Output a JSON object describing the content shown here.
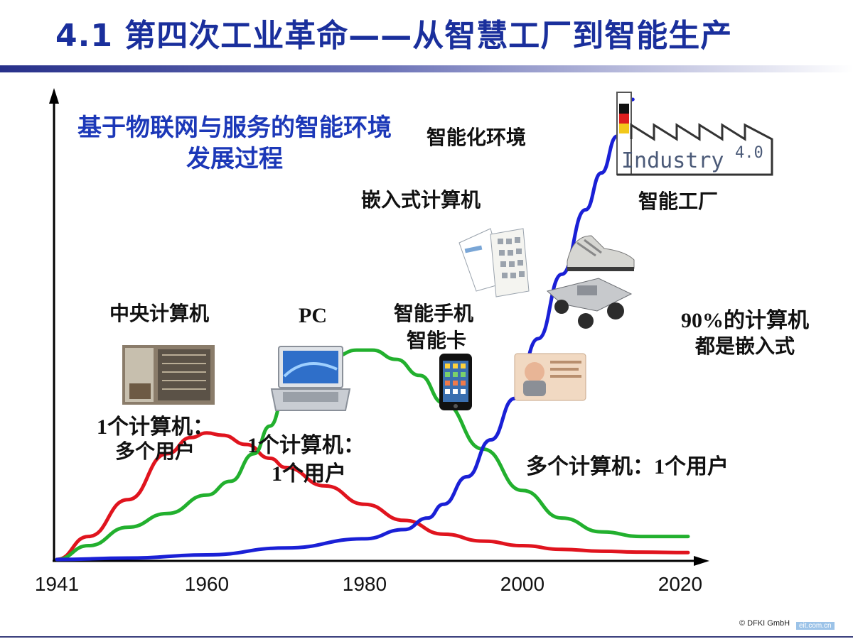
{
  "header": {
    "title": "4.1 第四次工业革命——从智慧工厂到智能生产"
  },
  "chart_data": {
    "type": "line",
    "title": "基于物联网与服务的智能环境发展过程",
    "xlabel": "",
    "ylabel": "",
    "x_ticks": [
      "1941",
      "1960",
      "1980",
      "2000",
      "2020"
    ],
    "xlim": [
      1941,
      2021
    ],
    "ylim": [
      0,
      100
    ],
    "grid": false,
    "series": [
      {
        "color": "#e0141e",
        "x": [
          1941,
          1945,
          1950,
          1955,
          1958,
          1960,
          1962,
          1965,
          1968,
          1970,
          1975,
          1980,
          1985,
          1990,
          1995,
          2000,
          2005,
          2010,
          2015,
          2021
        ],
        "y": [
          0,
          5,
          13,
          23,
          26.5,
          27.5,
          27,
          25,
          22,
          20,
          16,
          12,
          8.5,
          5.5,
          4,
          3,
          2.2,
          1.8,
          1.6,
          1.5
        ]
      },
      {
        "color": "#22b02e",
        "x": [
          1941,
          1945,
          1950,
          1955,
          1960,
          1963,
          1966,
          1968,
          1970,
          1973,
          1976,
          1979,
          1981,
          1984,
          1987,
          1990,
          1995,
          2000,
          2005,
          2010,
          2015,
          2021
        ],
        "y": [
          0,
          3,
          7,
          10,
          14,
          17,
          23,
          29,
          36,
          42,
          44,
          45.5,
          45.5,
          43.5,
          40,
          34,
          24,
          15,
          9,
          6,
          5,
          5
        ]
      },
      {
        "color": "#1a20d6",
        "x": [
          1941,
          1950,
          1960,
          1970,
          1980,
          1985,
          1988,
          1990,
          1993,
          1996,
          1999,
          2002,
          2005,
          2008,
          2010,
          2012,
          2014
        ],
        "y": [
          0,
          0.3,
          1,
          2.5,
          4.5,
          6.5,
          9,
          12,
          18,
          26,
          35,
          48,
          62,
          76,
          84,
          92,
          100
        ]
      }
    ],
    "annotations": {
      "mainframe": "中央计算机",
      "mainframe_desc_1": "1个计算机：",
      "mainframe_desc_2": "多个用户",
      "pc": "PC",
      "pc_desc_1": "1个计算机：",
      "pc_desc_2": "1个用户",
      "smartphone_1": "智能手机",
      "smartphone_2": "智能卡",
      "embedded": "嵌入式计算机",
      "smart_env": "智能化环境",
      "smart_factory": "智能工厂",
      "embedded_pct_1": "90%的计算机",
      "embedded_pct_2": "都是嵌入式",
      "many_computers": "多个计算机：1个用户"
    }
  },
  "logo": {
    "industry_text": "Industry",
    "version": "4.0"
  },
  "footer": {
    "copyright": "© DFKI GmbH",
    "watermark": "eit.com.cn"
  }
}
